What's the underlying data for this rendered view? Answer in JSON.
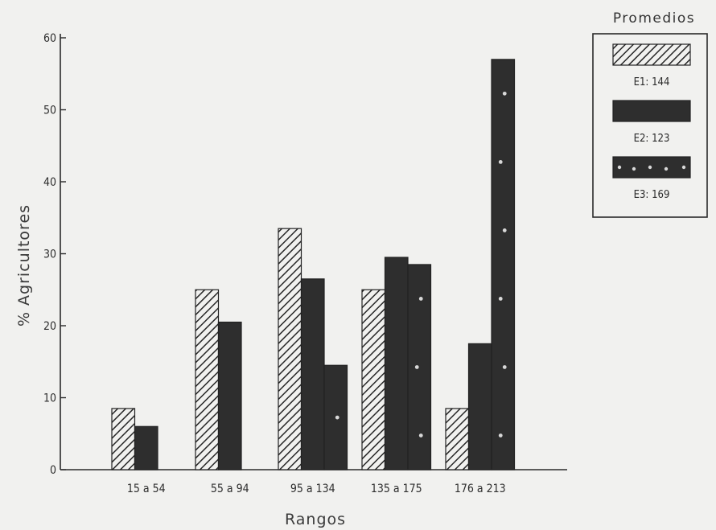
{
  "chart_data": {
    "type": "bar",
    "categories": [
      "15 a 54",
      "55 a 94",
      "95 a 134",
      "135 a 175",
      "176 a 213"
    ],
    "series": [
      {
        "name": "E1: 144",
        "values": [
          8.5,
          25,
          33.5,
          25,
          8.5
        ],
        "pattern": "hatch"
      },
      {
        "name": "E2: 123",
        "values": [
          6,
          20.5,
          26.5,
          29.5,
          17.5
        ],
        "pattern": "solid"
      },
      {
        "name": "E3: 169",
        "values": [
          0,
          0,
          14.5,
          28.5,
          57
        ],
        "pattern": "dotted"
      }
    ],
    "xlabel": "Rangos",
    "ylabel": "% Agricultores",
    "ylim": [
      0,
      60
    ],
    "yticks": [
      0,
      10,
      20,
      30,
      40,
      50,
      60
    ],
    "legend_title": "Promedios",
    "legend_position": "top-right",
    "grid": false,
    "colors": {
      "bar_dark": "#2e2e2e",
      "hatch_stroke": "#262626",
      "hatch_bg": "#f1f1ef",
      "axis": "#2a2a2a",
      "dot": "#d8d8d8"
    }
  }
}
